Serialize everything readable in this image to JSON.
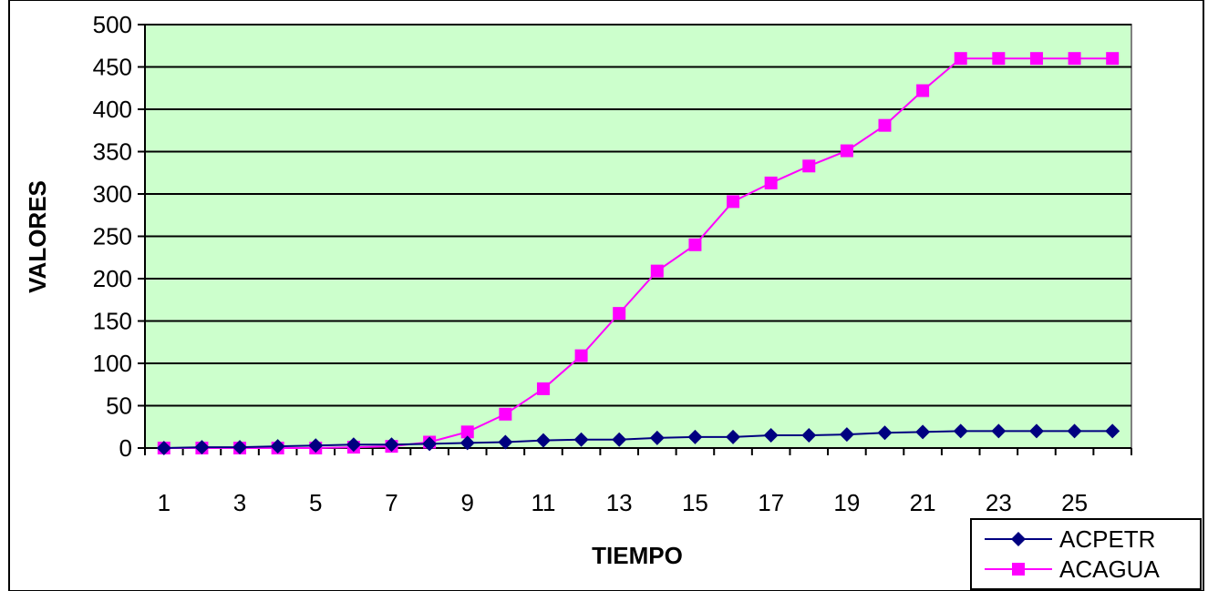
{
  "chart_data": {
    "type": "line",
    "title": "",
    "xlabel": "TIEMPO",
    "ylabel": "VALORES",
    "x": [
      1,
      2,
      3,
      4,
      5,
      6,
      7,
      8,
      9,
      10,
      11,
      12,
      13,
      14,
      15,
      16,
      17,
      18,
      19,
      20,
      21,
      22,
      23,
      24,
      25,
      26
    ],
    "x_tick_labels": [
      "1",
      "3",
      "5",
      "7",
      "9",
      "11",
      "13",
      "15",
      "17",
      "19",
      "21",
      "23",
      "25"
    ],
    "y_tick_labels": [
      "0",
      "50",
      "100",
      "150",
      "200",
      "250",
      "300",
      "350",
      "400",
      "450",
      "500"
    ],
    "ylim": [
      0,
      500
    ],
    "grid": true,
    "legend_position": "bottom-right",
    "plot_background": "#ccffcc",
    "series": [
      {
        "name": "ACPETR",
        "color": "#000080",
        "marker": "diamond",
        "values": [
          0,
          1,
          1,
          2,
          3,
          4,
          4,
          5,
          6,
          7,
          9,
          10,
          10,
          12,
          13,
          13,
          15,
          15,
          16,
          18,
          19,
          20,
          20,
          20,
          20,
          20
        ]
      },
      {
        "name": "ACAGUA",
        "color": "#ff00ff",
        "marker": "square",
        "values": [
          0,
          0,
          0,
          0,
          0,
          1,
          2,
          7,
          19,
          40,
          70,
          109,
          159,
          209,
          240,
          291,
          313,
          333,
          351,
          381,
          422,
          460,
          460,
          460,
          460,
          460
        ]
      }
    ]
  }
}
